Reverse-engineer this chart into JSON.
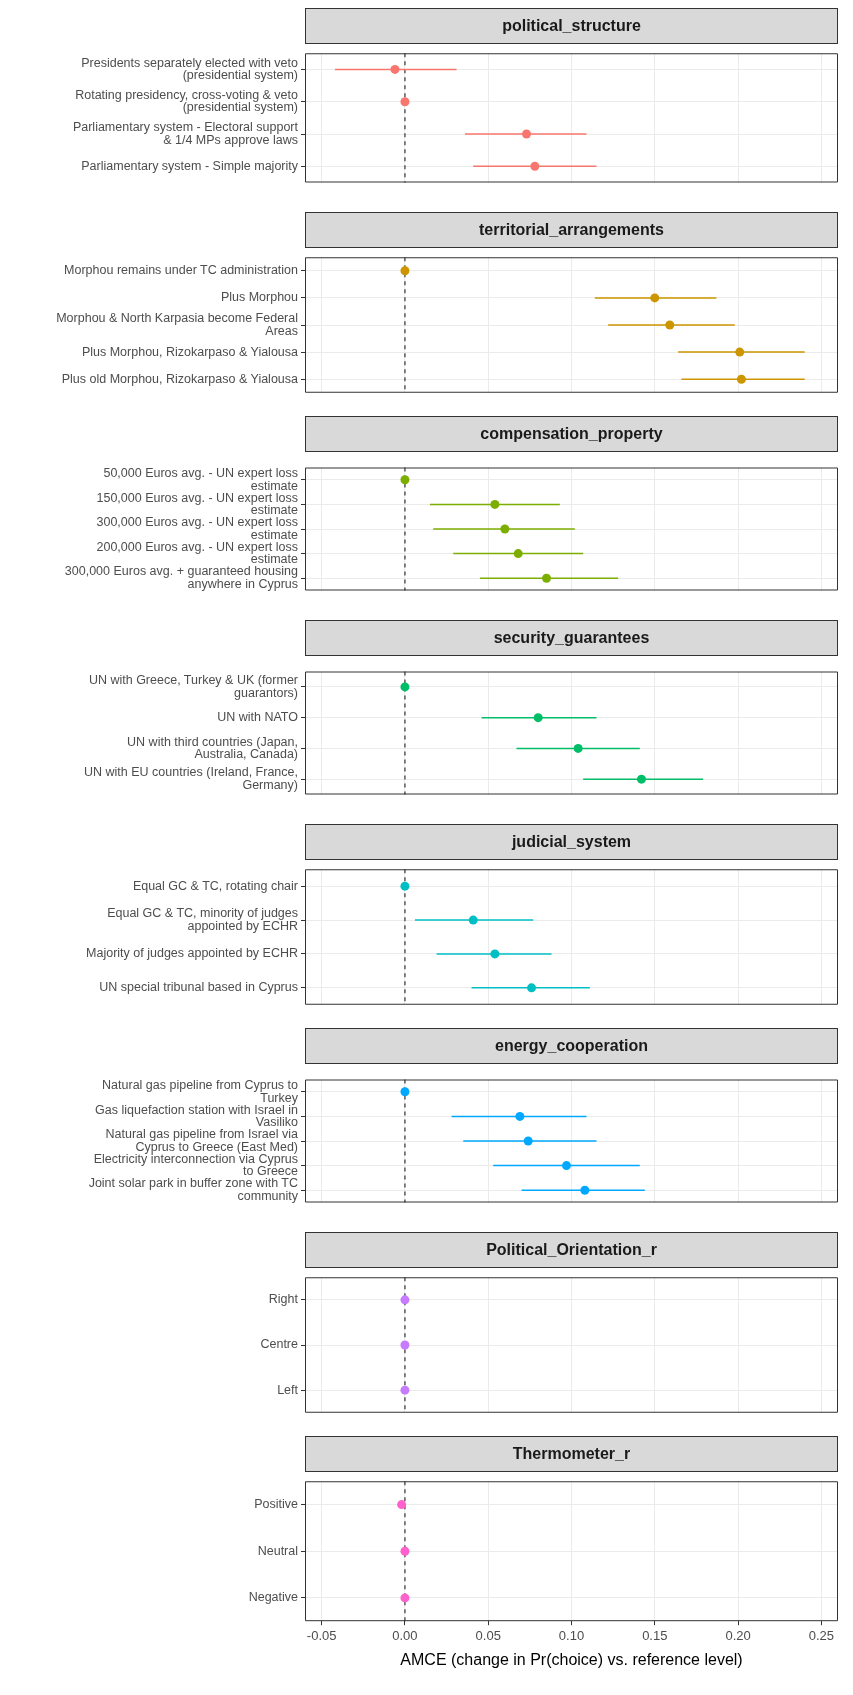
{
  "chart_data": [
    {
      "type": "scatter",
      "title": "political_structure",
      "orientation": "horizontal",
      "marker": "circle",
      "grid": true,
      "tick_labels": "y",
      "xlim": [
        -0.06,
        0.26
      ],
      "ref_lines": [
        {
          "axis": "x",
          "value": 0,
          "line_style": "dashed"
        }
      ],
      "categories": [
        "Presidents separately elected with veto\n(presidential system)",
        "Rotating presidency, cross-voting & veto\n(presidential system)",
        "Parliamentary system - Electoral support\n& 1/4 MPs approve laws",
        "Parliamentary system - Simple majority"
      ],
      "series": [
        {
          "color": "#f8766d",
          "values": [
            -0.006,
            0,
            0.073,
            0.078
          ],
          "errors": [
            [
              -0.042,
              0.031
            ],
            null,
            [
              0.036,
              0.109
            ],
            [
              0.041,
              0.115
            ]
          ]
        }
      ]
    },
    {
      "type": "scatter",
      "title": "territorial_arrangements",
      "orientation": "horizontal",
      "marker": "circle",
      "grid": true,
      "tick_labels": "y",
      "xlim": [
        -0.06,
        0.26
      ],
      "ref_lines": [
        {
          "axis": "x",
          "value": 0,
          "line_style": "dashed"
        }
      ],
      "categories": [
        "Morphou remains under TC administration",
        "Plus Morphou",
        "Morphou & North Karpasia become Federal\nAreas",
        "Plus Morphou, Rizokarpaso & Yialousa",
        "Plus old Morphou, Rizokarpaso & Yialousa"
      ],
      "series": [
        {
          "color": "#cd9600",
          "values": [
            0,
            0.15,
            0.159,
            0.201,
            0.202
          ],
          "errors": [
            null,
            [
              0.114,
              0.187
            ],
            [
              0.122,
              0.198
            ],
            [
              0.164,
              0.24
            ],
            [
              0.166,
              0.24
            ]
          ]
        }
      ]
    },
    {
      "type": "scatter",
      "title": "compensation_property",
      "orientation": "horizontal",
      "marker": "circle",
      "grid": true,
      "tick_labels": "y",
      "xlim": [
        -0.06,
        0.26
      ],
      "ref_lines": [
        {
          "axis": "x",
          "value": 0,
          "line_style": "dashed"
        }
      ],
      "categories": [
        "50,000 Euros avg. - UN expert loss\nestimate",
        "150,000 Euros avg. - UN expert loss\nestimate",
        "300,000 Euros avg. - UN expert loss\nestimate",
        "200,000 Euros avg. - UN expert loss\nestimate",
        "300,000 Euros avg. + guaranteed housing\nanywhere in Cyprus"
      ],
      "series": [
        {
          "color": "#7cae00",
          "values": [
            0,
            0.054,
            0.06,
            0.068,
            0.085
          ],
          "errors": [
            null,
            [
              0.015,
              0.093
            ],
            [
              0.017,
              0.102
            ],
            [
              0.029,
              0.107
            ],
            [
              0.045,
              0.128
            ]
          ]
        }
      ]
    },
    {
      "type": "scatter",
      "title": "security_guarantees",
      "orientation": "horizontal",
      "marker": "circle",
      "grid": true,
      "tick_labels": "y",
      "xlim": [
        -0.06,
        0.26
      ],
      "ref_lines": [
        {
          "axis": "x",
          "value": 0,
          "line_style": "dashed"
        }
      ],
      "categories": [
        "UN with Greece, Turkey & UK (former\nguarantors)",
        "UN with NATO",
        "UN with third countries (Japan,\nAustralia, Canada)",
        "UN with EU countries (Ireland, France,\nGermany)"
      ],
      "series": [
        {
          "color": "#00be67",
          "values": [
            0,
            0.08,
            0.104,
            0.142
          ],
          "errors": [
            null,
            [
              0.046,
              0.115
            ],
            [
              0.067,
              0.141
            ],
            [
              0.107,
              0.179
            ]
          ]
        }
      ]
    },
    {
      "type": "scatter",
      "title": "judicial_system",
      "orientation": "horizontal",
      "marker": "circle",
      "grid": true,
      "tick_labels": "y",
      "xlim": [
        -0.06,
        0.26
      ],
      "ref_lines": [
        {
          "axis": "x",
          "value": 0,
          "line_style": "dashed"
        }
      ],
      "categories": [
        "Equal GC & TC, rotating chair",
        "Equal GC & TC, minority of judges\nappointed by ECHR",
        "Majority of judges appointed by ECHR",
        "UN special tribunal based in Cyprus"
      ],
      "series": [
        {
          "color": "#00bfc4",
          "values": [
            0,
            0.041,
            0.054,
            0.076
          ],
          "errors": [
            null,
            [
              0.006,
              0.077
            ],
            [
              0.019,
              0.088
            ],
            [
              0.04,
              0.111
            ]
          ]
        }
      ]
    },
    {
      "type": "scatter",
      "title": "energy_cooperation",
      "orientation": "horizontal",
      "marker": "circle",
      "grid": true,
      "tick_labels": "y",
      "xlim": [
        -0.06,
        0.26
      ],
      "ref_lines": [
        {
          "axis": "x",
          "value": 0,
          "line_style": "dashed"
        }
      ],
      "categories": [
        "Natural gas pipeline from Cyprus to\nTurkey",
        "Gas liquefaction station with Israel in\nVasiliko",
        "Natural gas pipeline from Israel via\nCyprus to Greece (East Med)",
        "Electricity interconnection via Cyprus\nto Greece",
        "Joint solar park in buffer zone with TC\ncommunity"
      ],
      "series": [
        {
          "color": "#00a9ff",
          "values": [
            0,
            0.069,
            0.074,
            0.097,
            0.108
          ],
          "errors": [
            null,
            [
              0.028,
              0.109
            ],
            [
              0.035,
              0.115
            ],
            [
              0.053,
              0.141
            ],
            [
              0.07,
              0.144
            ]
          ]
        }
      ]
    },
    {
      "type": "scatter",
      "title": "Political_Orientation_r",
      "orientation": "horizontal",
      "marker": "circle",
      "grid": true,
      "tick_labels": "y",
      "xlim": [
        -0.06,
        0.26
      ],
      "ref_lines": [
        {
          "axis": "x",
          "value": 0,
          "line_style": "dashed"
        }
      ],
      "categories": [
        "Right",
        "Centre",
        "Left"
      ],
      "series": [
        {
          "color": "#c77cff",
          "values": [
            0,
            0,
            0
          ]
        }
      ]
    },
    {
      "type": "scatter",
      "title": "Thermometer_r",
      "orientation": "horizontal",
      "marker": "circle",
      "grid": true,
      "xlabel": "AMCE (change in Pr(choice) vs. reference level)",
      "xlim": [
        -0.06,
        0.26
      ],
      "xticks": [
        {
          "value": -0.05,
          "label": "-0.05"
        },
        {
          "value": 0,
          "label": "0.00"
        },
        {
          "value": 0.05,
          "label": "0.05"
        },
        {
          "value": 0.1,
          "label": "0.10"
        },
        {
          "value": 0.15,
          "label": "0.15"
        },
        {
          "value": 0.2,
          "label": "0.20"
        },
        {
          "value": 0.25,
          "label": "0.25"
        }
      ],
      "ref_lines": [
        {
          "axis": "x",
          "value": 0,
          "line_style": "dashed"
        }
      ],
      "categories": [
        "Positive",
        "Neutral",
        "Negative"
      ],
      "series": [
        {
          "color": "#ff61cc",
          "values": [
            -0.002,
            0,
            0
          ]
        }
      ]
    }
  ]
}
